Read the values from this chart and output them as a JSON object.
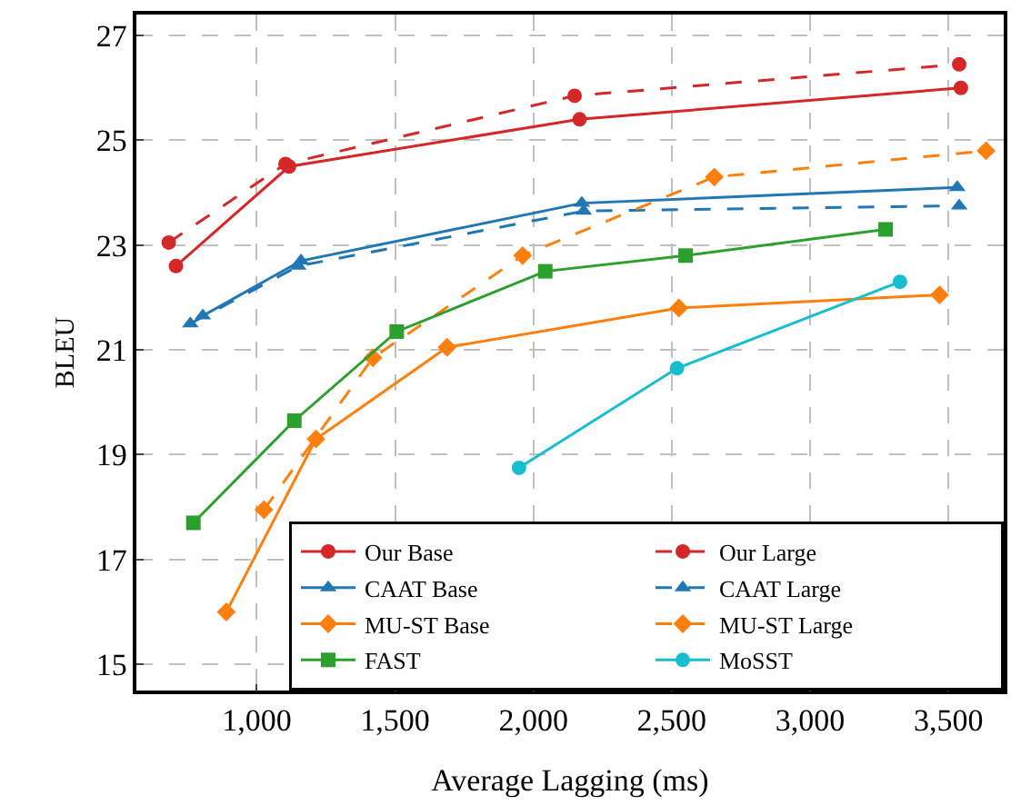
{
  "chart_data": {
    "type": "line",
    "xlabel": "Average Lagging (ms)",
    "ylabel": "BLEU",
    "xlim": [
      565,
      3700
    ],
    "ylim": [
      14.5,
      27.4
    ],
    "xticks": [
      {
        "value": 1000,
        "label": "1,000"
      },
      {
        "value": 1500,
        "label": "1,500"
      },
      {
        "value": 2000,
        "label": "2,000"
      },
      {
        "value": 2500,
        "label": "2,500"
      },
      {
        "value": 3000,
        "label": "3,000"
      },
      {
        "value": 3500,
        "label": "3,500"
      }
    ],
    "yticks": [
      15,
      17,
      19,
      21,
      23,
      25,
      27
    ],
    "grid": true,
    "legend": "bottom right",
    "series": [
      {
        "name": "Our Base",
        "color": "#d62728",
        "marker": "circle",
        "line_style": "solid",
        "x": [
          708,
          1117,
          2167,
          3545
        ],
        "values": [
          22.6,
          24.5,
          25.4,
          26.0
        ]
      },
      {
        "name": "Our Large",
        "color": "#d62728",
        "marker": "circle",
        "line_style": "dashed",
        "x": [
          682,
          1104,
          2149,
          3539
        ],
        "values": [
          23.05,
          24.55,
          25.85,
          26.45
        ]
      },
      {
        "name": "CAAT Base",
        "color": "#1f77b4",
        "marker": "triangle",
        "line_style": "solid",
        "x": [
          805,
          1160,
          2175,
          3532
        ],
        "values": [
          21.65,
          22.7,
          23.8,
          24.1
        ]
      },
      {
        "name": "CAAT Large",
        "color": "#1f77b4",
        "marker": "triangle",
        "line_style": "dashed",
        "x": [
          760,
          1150,
          2182,
          3539
        ],
        "values": [
          21.5,
          22.6,
          23.65,
          23.75
        ]
      },
      {
        "name": "MU-ST Base",
        "color": "#ff7f0e",
        "marker": "diamond",
        "line_style": "solid",
        "x": [
          890,
          1214,
          1688,
          2526,
          3468
        ],
        "values": [
          16.0,
          19.3,
          21.05,
          21.8,
          22.05
        ]
      },
      {
        "name": "MU-ST Large",
        "color": "#ff7f0e",
        "marker": "diamond",
        "line_style": "dashed",
        "x": [
          1026,
          1420,
          1961,
          2654,
          3636
        ],
        "values": [
          17.95,
          20.85,
          22.8,
          24.3,
          24.8
        ]
      },
      {
        "name": "FAST",
        "color": "#2ca02c",
        "marker": "square",
        "line_style": "solid",
        "x": [
          771,
          1136,
          1506,
          2043,
          2550,
          3273
        ],
        "values": [
          17.7,
          19.65,
          21.35,
          22.5,
          22.8,
          23.3
        ]
      },
      {
        "name": "MoSST",
        "color": "#17becf",
        "marker": "circle",
        "line_style": "solid",
        "x": [
          1948,
          2519,
          3325
        ],
        "values": [
          18.75,
          20.65,
          22.3
        ]
      }
    ]
  }
}
